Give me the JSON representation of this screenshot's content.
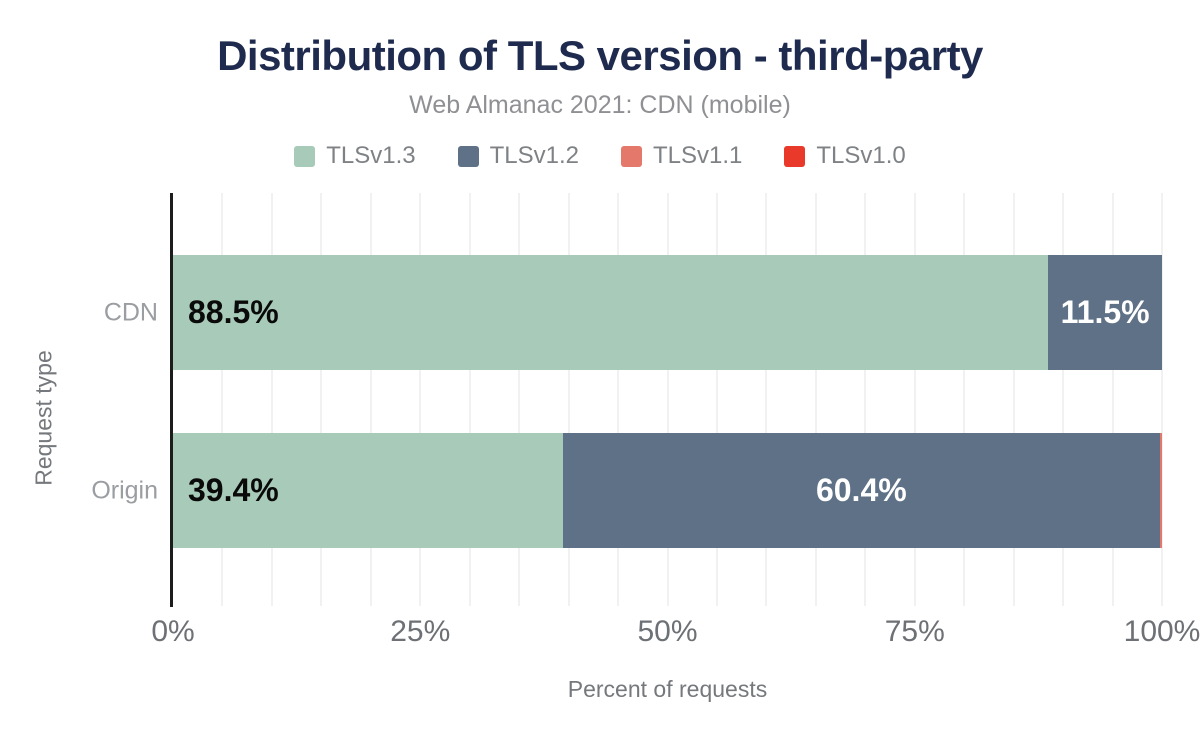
{
  "title": "Distribution of TLS version - third-party",
  "subtitle": "Web Almanac 2021: CDN (mobile)",
  "colors": {
    "title": "#1e2a4e",
    "subtitle": "#8e9093",
    "axis_line": "#1c1c1c",
    "gridline": "#f1f1f1",
    "tick_label": "#6d7175",
    "category_label": "#9a9da1",
    "axis_title": "#75787c",
    "value_label_dark": "#0a0a0a",
    "value_label_light": "#ffffff"
  },
  "chart_data": {
    "type": "bar",
    "orientation": "horizontal",
    "stacked": true,
    "title": "Distribution of TLS version - third-party",
    "subtitle": "Web Almanac 2021: CDN (mobile)",
    "xlabel": "Percent of requests",
    "ylabel": "Request type",
    "xlim": [
      0,
      100
    ],
    "grid": true,
    "grid_step": 5,
    "legend_position": "top",
    "categories": [
      "CDN",
      "Origin"
    ],
    "xticks": [
      0,
      25,
      50,
      75,
      100
    ],
    "xtick_labels": [
      "0%",
      "25%",
      "50%",
      "75%",
      "100%"
    ],
    "series": [
      {
        "name": "TLSv1.3",
        "color": "#a8cab8",
        "values": [
          88.5,
          39.4
        ],
        "labels": [
          "88.5%",
          "39.4%"
        ],
        "label_style": "left-dark"
      },
      {
        "name": "TLSv1.2",
        "color": "#5e7187",
        "values": [
          11.5,
          60.4
        ],
        "labels": [
          "11.5%",
          "60.4%"
        ],
        "label_style": "center-light"
      },
      {
        "name": "TLSv1.1",
        "color": "#e4796b",
        "values": [
          0,
          0.2
        ],
        "labels": [
          "",
          ""
        ],
        "label_style": "center-light"
      },
      {
        "name": "TLSv1.0",
        "color": "#e8392a",
        "values": [
          0,
          0
        ],
        "labels": [
          "",
          ""
        ],
        "label_style": "center-light"
      }
    ]
  }
}
